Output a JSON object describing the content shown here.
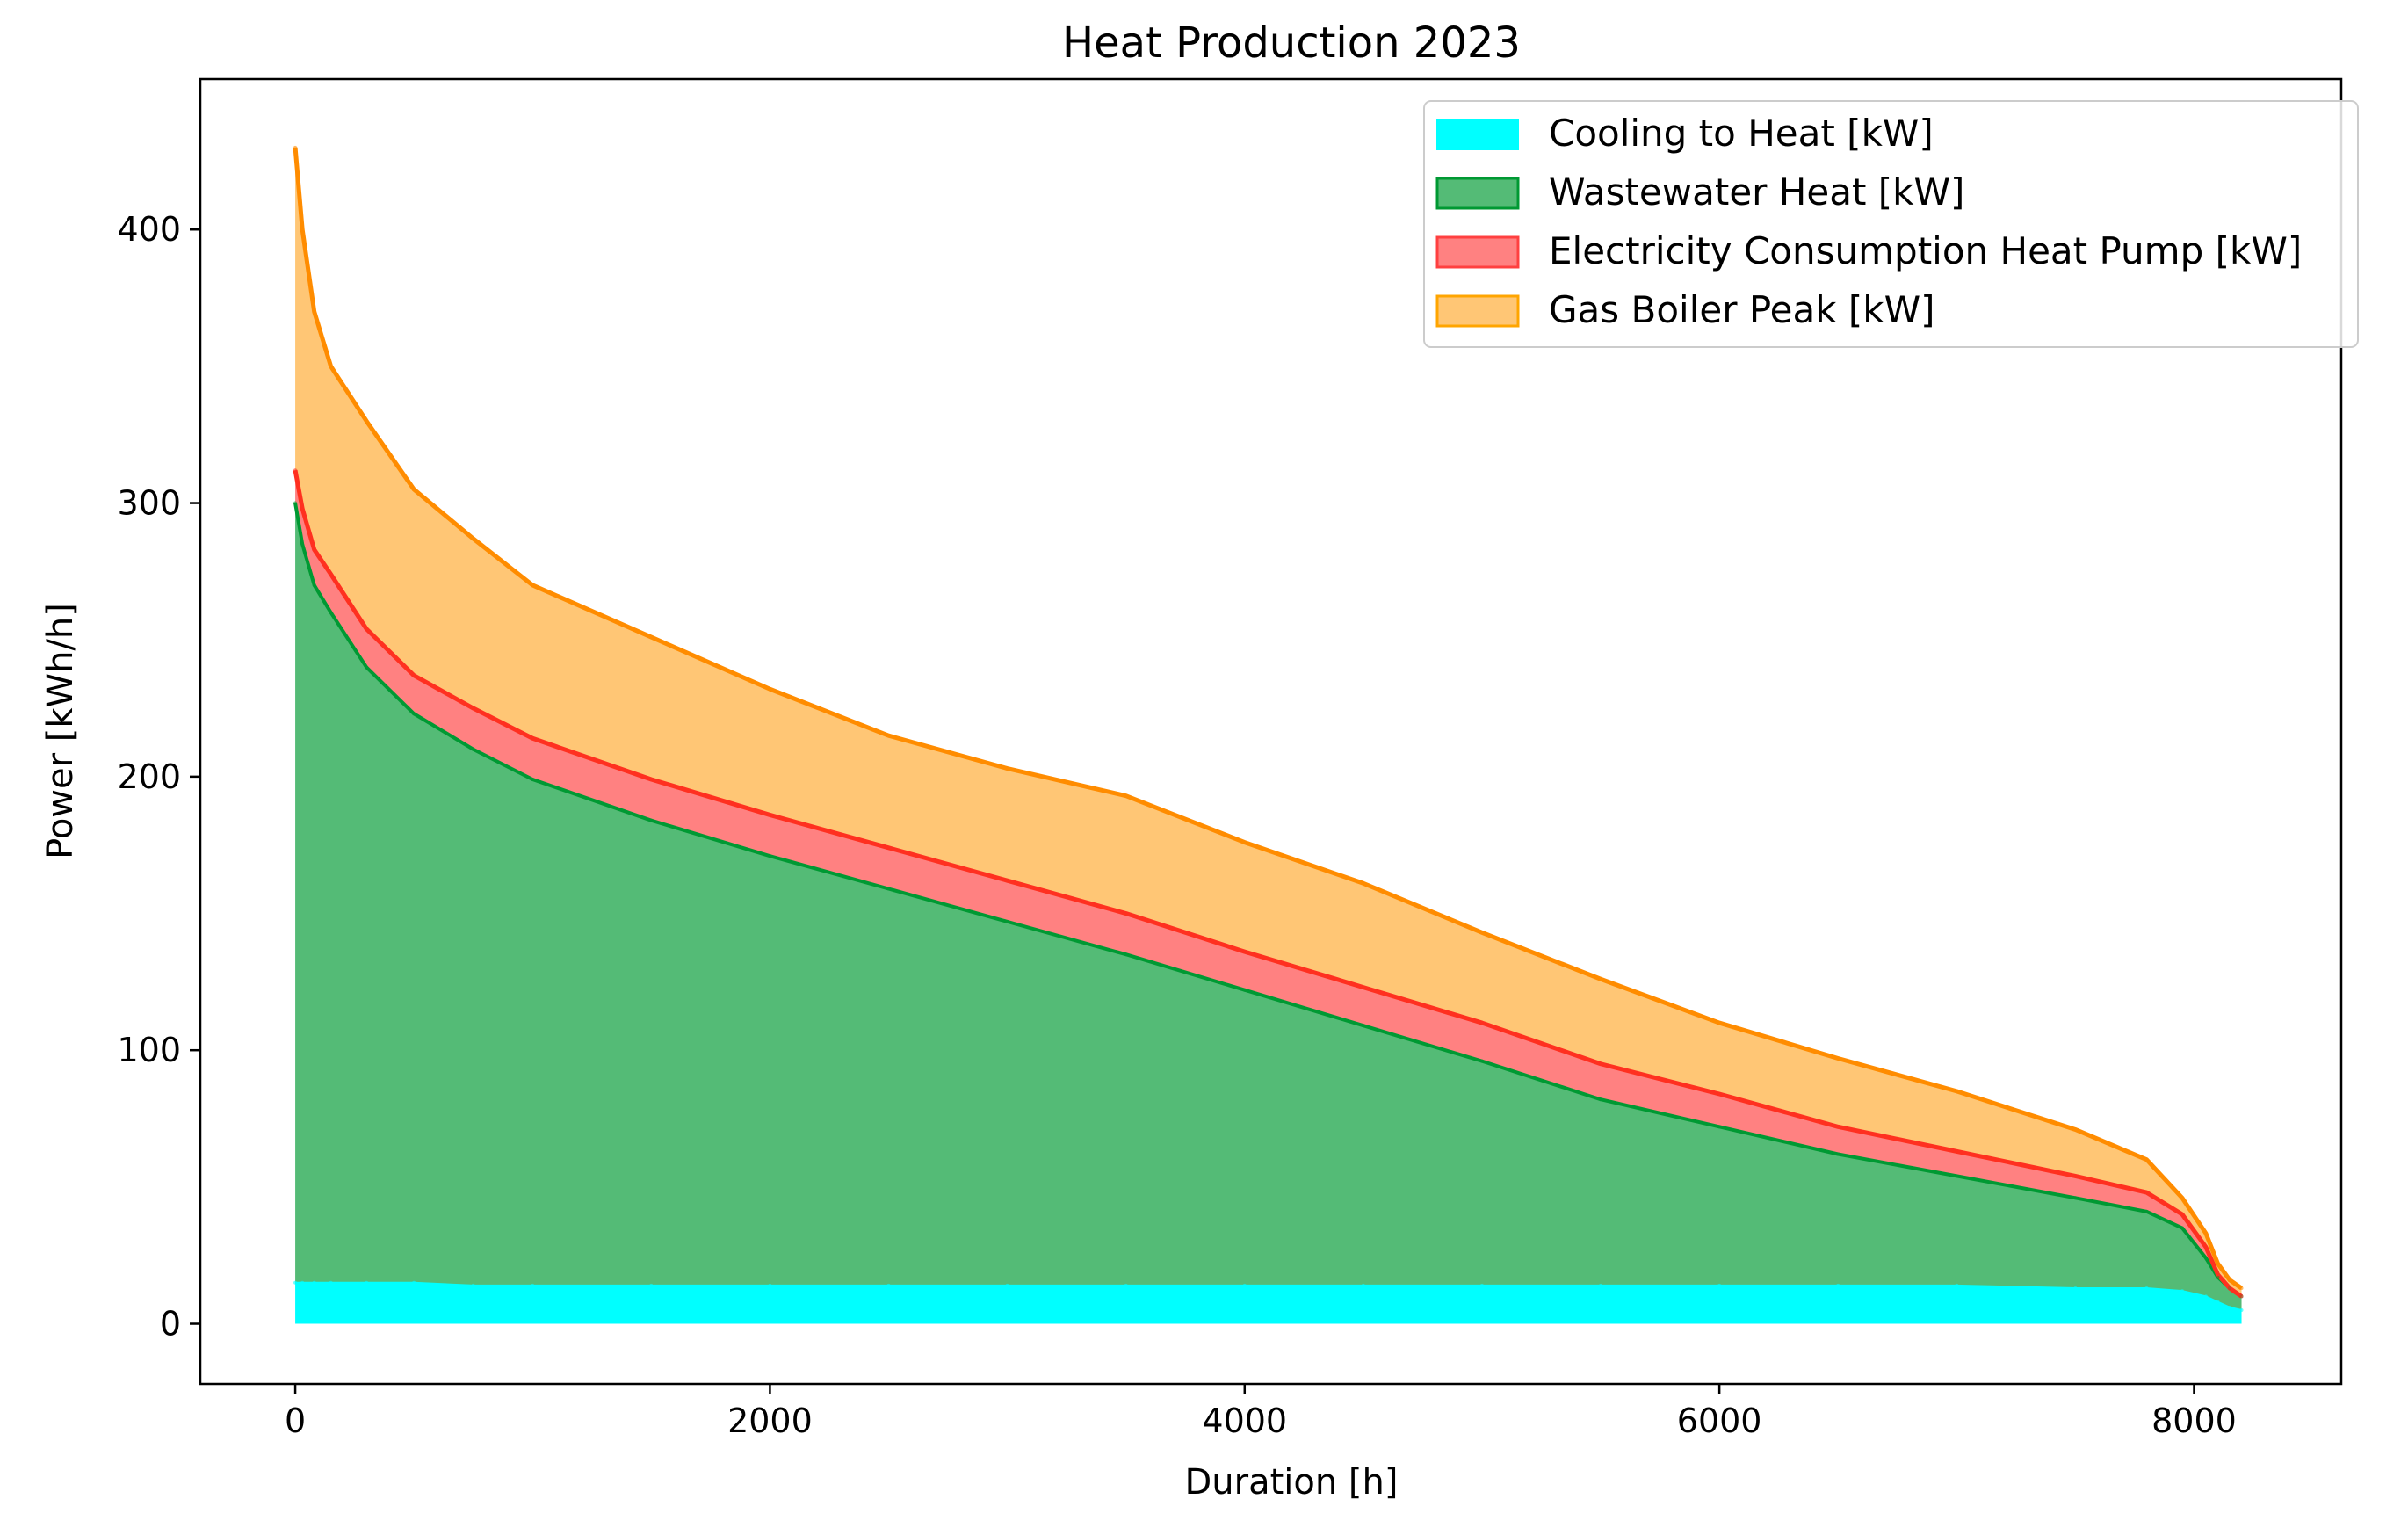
{
  "chart_data": {
    "type": "area",
    "title": "Heat Production 2023",
    "xlabel": "Duration [h]",
    "ylabel": "Power [kWh/h]",
    "xlim": [
      -400,
      8620
    ],
    "ylim": [
      -22,
      455
    ],
    "xticks": [
      0,
      2000,
      4000,
      6000,
      8000
    ],
    "xtick_labels": [
      "0",
      "2000",
      "4000",
      "6000",
      "8000"
    ],
    "yticks": [
      0,
      100,
      200,
      300,
      400
    ],
    "ytick_labels": [
      "0",
      "100",
      "200",
      "300",
      "400"
    ],
    "grid": false,
    "legend_position": "upper right",
    "x": [
      0,
      30,
      80,
      150,
      300,
      500,
      750,
      1000,
      1500,
      2000,
      2500,
      3000,
      3500,
      4000,
      4500,
      5000,
      5500,
      6000,
      6500,
      7000,
      7500,
      7800,
      7950,
      8050,
      8100,
      8150,
      8200
    ],
    "series": [
      {
        "name": "Cooling to Heat [kW]",
        "color": "#00ffff",
        "values": [
          15,
          15,
          15,
          15,
          15,
          15,
          14,
          14,
          14,
          14,
          14,
          14,
          14,
          14,
          14,
          14,
          14,
          14,
          14,
          14,
          13,
          13,
          12,
          10,
          8,
          6,
          5
        ]
      },
      {
        "name": "Wastewater Heat [kW]",
        "color": "#009933",
        "values": [
          285,
          270,
          255,
          245,
          225,
          208,
          196,
          185,
          170,
          157,
          145,
          133,
          121,
          108,
          95,
          82,
          68,
          58,
          48,
          40,
          33,
          28,
          23,
          14,
          9,
          7,
          5
        ]
      },
      {
        "name": "Electricity Consumption Heat Pump [kW]",
        "color": "#ff5050",
        "values": [
          12,
          13,
          13,
          14,
          14,
          14,
          15,
          15,
          15,
          15,
          15,
          15,
          15,
          14,
          14,
          14,
          13,
          12,
          10,
          9,
          8,
          7,
          5,
          4,
          1,
          0,
          0
        ]
      },
      {
        "name": "Gas Boiler Peak [kW]",
        "color": "#ffb347",
        "values": [
          118,
          102,
          87,
          76,
          76,
          68,
          62,
          56,
          52,
          46,
          41,
          41,
          43,
          40,
          38,
          33,
          31,
          26,
          25,
          22,
          17,
          12,
          6,
          5,
          4,
          3,
          3
        ]
      }
    ],
    "totals": [
      430,
      400,
      370,
      350,
      330,
      305,
      287,
      270,
      251,
      232,
      215,
      203,
      193,
      176,
      161,
      143,
      126,
      110,
      97,
      85,
      71,
      60,
      46,
      33,
      22,
      16,
      13
    ]
  }
}
